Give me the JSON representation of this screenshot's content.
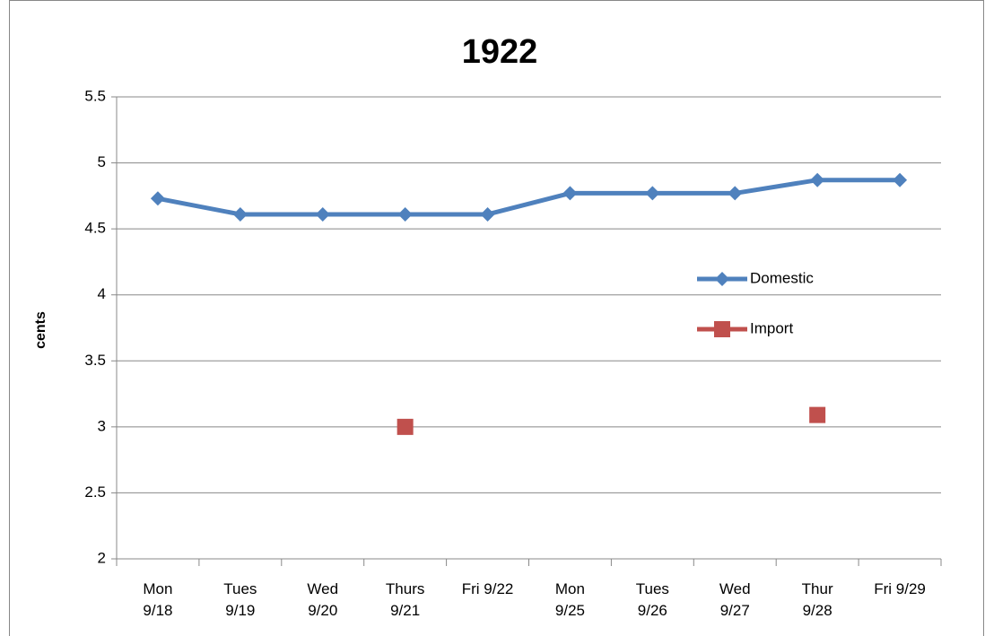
{
  "chart_data": {
    "type": "line",
    "title": "1922",
    "y_label": "cents",
    "categories": [
      "Mon 9/18",
      "Tues 9/19",
      "Wed 9/20",
      "Thurs 9/21",
      "Fri 9/22",
      "Mon 9/25",
      "Tues 9/26",
      "Wed 9/27",
      "Thur 9/28",
      "Fri 9/29"
    ],
    "series": [
      {
        "name": "Domestic",
        "color": "#4f81bd",
        "marker": "diamond",
        "values": [
          4.73,
          4.61,
          4.61,
          4.61,
          4.61,
          4.77,
          4.77,
          4.77,
          4.87,
          4.87
        ]
      },
      {
        "name": "Import",
        "color": "#c0504d",
        "marker": "square",
        "values": [
          null,
          null,
          null,
          3.0,
          null,
          null,
          null,
          null,
          3.09,
          null
        ]
      }
    ],
    "ylim": [
      2,
      5.5
    ],
    "yticks": [
      2,
      2.5,
      3,
      3.5,
      4,
      4.5,
      5,
      5.5
    ],
    "grid": true,
    "legend": "right"
  }
}
